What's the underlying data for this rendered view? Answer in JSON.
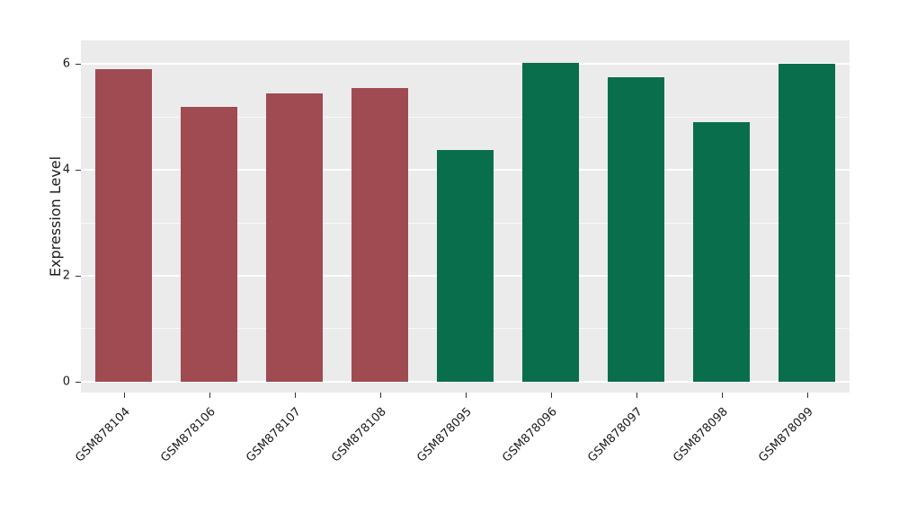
{
  "chart_data": {
    "type": "bar",
    "title": "",
    "xlabel": "",
    "ylabel": "Expression Level",
    "categories": [
      "GSM878104",
      "GSM878106",
      "GSM878107",
      "GSM878108",
      "GSM878095",
      "GSM878096",
      "GSM878097",
      "GSM878098",
      "GSM878099"
    ],
    "values": [
      5.9,
      5.2,
      5.45,
      5.55,
      4.37,
      6.02,
      5.75,
      4.9,
      6.0
    ],
    "bar_colors": [
      "#a04a52",
      "#a04a52",
      "#a04a52",
      "#a04a52",
      "#096e4b",
      "#096e4b",
      "#096e4b",
      "#096e4b",
      "#096e4b"
    ],
    "groups": {
      "maroon_group": {
        "color": "#a04a52",
        "samples": [
          "GSM878104",
          "GSM878106",
          "GSM878107",
          "GSM878108"
        ]
      },
      "green_group": {
        "color": "#096e4b",
        "samples": [
          "GSM878095",
          "GSM878096",
          "GSM878097",
          "GSM878098",
          "GSM878099"
        ]
      }
    },
    "ylim": [
      -0.21,
      6.45
    ],
    "yticks": [
      0,
      2,
      4,
      6
    ],
    "minor_yticks": [
      1,
      3,
      5
    ],
    "grid": true,
    "legend": "none",
    "panel_background": "#ebebeb",
    "gridline_color": "#ffffff"
  }
}
